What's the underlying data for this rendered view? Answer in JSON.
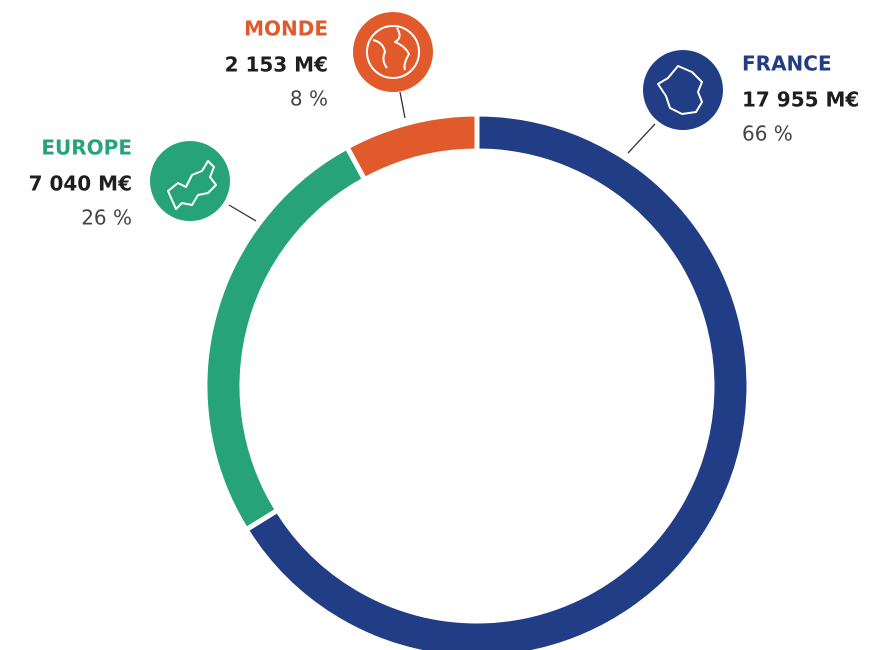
{
  "chart_data": {
    "type": "donut",
    "categories": [
      "FRANCE",
      "EUROPE",
      "MONDE"
    ],
    "values": [
      17955,
      7040,
      2153
    ],
    "value_labels": [
      "17 955 M€",
      "7 040 M€",
      "2 153 M€"
    ],
    "percentages": [
      66,
      26,
      8
    ],
    "percentage_labels": [
      "66 %",
      "26 %",
      "8 %"
    ],
    "colors": [
      "#213d85",
      "#27a37a",
      "#e05a2b"
    ]
  }
}
